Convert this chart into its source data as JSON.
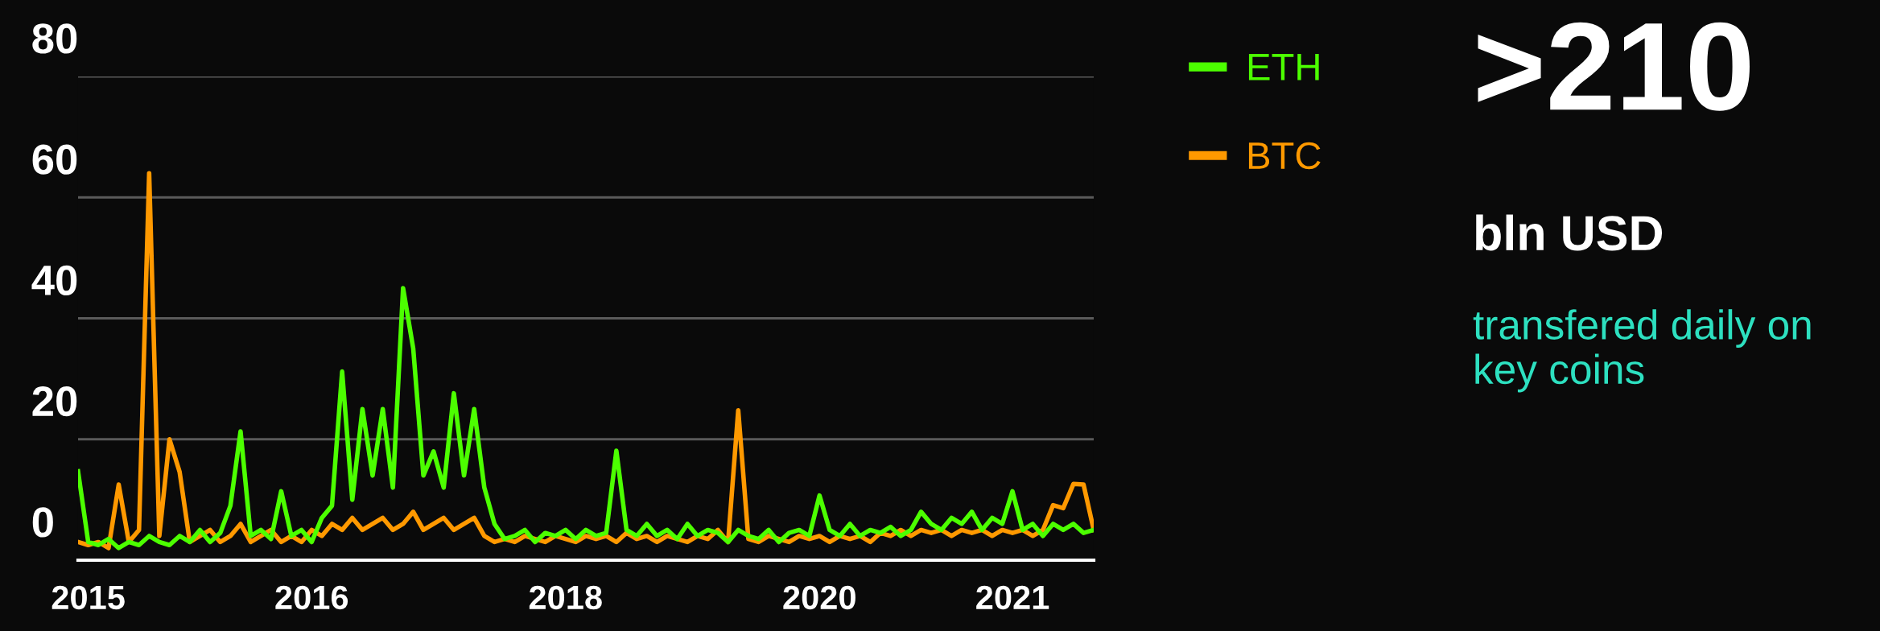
{
  "chart_data": {
    "type": "line",
    "categories": [
      null,
      "2015",
      null,
      null,
      null,
      null,
      null,
      null,
      null,
      null,
      null,
      null,
      null,
      null,
      null,
      null,
      null,
      null,
      null,
      null,
      null,
      null,
      null,
      "2016",
      null,
      null,
      null,
      null,
      null,
      null,
      null,
      null,
      null,
      null,
      null,
      null,
      null,
      null,
      null,
      null,
      null,
      null,
      null,
      null,
      null,
      null,
      null,
      null,
      "2018",
      null,
      null,
      null,
      null,
      null,
      null,
      null,
      null,
      null,
      null,
      null,
      null,
      null,
      null,
      null,
      null,
      null,
      null,
      null,
      null,
      null,
      null,
      null,
      null,
      "2020",
      null,
      null,
      null,
      null,
      null,
      null,
      null,
      null,
      null,
      null,
      null,
      null,
      null,
      null,
      null,
      null,
      null,
      null,
      "2021",
      null,
      null,
      null,
      null,
      null,
      null,
      null,
      null
    ],
    "series": [
      {
        "name": "ETH",
        "color": "#4cff00",
        "values": [
          14.7,
          3,
          2.5,
          3.5,
          2,
          3,
          2.5,
          4,
          3,
          2.5,
          4,
          3,
          5,
          3,
          4.5,
          9,
          21.3,
          4,
          5,
          3.5,
          11.4,
          4,
          5,
          3,
          7,
          9,
          31.2,
          10,
          25,
          14,
          25,
          12,
          45,
          35,
          14,
          18,
          12,
          27.6,
          14,
          25,
          12,
          6,
          3.5,
          4,
          5,
          3,
          4.5,
          4,
          5,
          3.5,
          5,
          4,
          4.5,
          18.1,
          5,
          4,
          6,
          4,
          5,
          3.5,
          6,
          4,
          5,
          4.5,
          3,
          5,
          4,
          3.5,
          5,
          3,
          4.5,
          5,
          4,
          10.7,
          5,
          4,
          6,
          4,
          5,
          4.5,
          5.5,
          4,
          5,
          8,
          6,
          5,
          7,
          6,
          8,
          5,
          7,
          6,
          11.4,
          5,
          6,
          4,
          6,
          5,
          6,
          4.5,
          5
        ]
      },
      {
        "name": "BTC",
        "color": "#ff9900",
        "values": [
          3,
          2.5,
          3,
          2,
          12.5,
          3,
          5,
          64,
          4,
          20,
          14.6,
          3,
          4,
          5,
          3,
          4,
          6,
          3,
          4,
          5,
          3,
          4,
          3,
          5,
          4,
          6,
          5,
          7,
          5,
          6,
          7,
          5,
          6,
          8,
          5,
          6,
          7,
          5,
          6,
          7,
          4,
          3,
          3.5,
          3,
          4,
          3.5,
          3,
          4,
          3.5,
          3,
          4,
          3.5,
          4,
          3,
          4.5,
          3.5,
          4,
          3,
          4,
          3.5,
          3,
          4,
          3.5,
          5,
          3,
          24.8,
          3.5,
          3,
          4,
          3.5,
          3,
          4,
          3.5,
          4,
          3,
          4,
          3.5,
          4,
          3,
          4.5,
          4,
          5,
          4,
          5,
          4.5,
          5,
          4,
          5,
          4.5,
          5,
          4,
          5,
          4.5,
          5,
          4,
          5,
          9.1,
          8.6,
          12.6,
          12.5,
          5
        ]
      }
    ],
    "ylim": [
      0,
      80
    ],
    "yticks": [
      0,
      20,
      40,
      60,
      80
    ],
    "grid": "y",
    "legend": "right",
    "marker": "none",
    "line_style": "solid",
    "annotations": [
      ">210",
      "bln USD",
      "transfered daily on key coins"
    ]
  }
}
